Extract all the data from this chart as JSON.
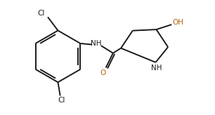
{
  "bg_color": "#ffffff",
  "bond_color": "#1a1a1a",
  "cl_color": "#1a1a1a",
  "o_color": "#b8620a",
  "nh_color": "#1a1a1a",
  "linewidth": 1.4,
  "figsize": [
    3.06,
    1.64
  ],
  "dpi": 100,
  "xlim": [
    0,
    9.5
  ],
  "ylim": [
    0,
    5.0
  ]
}
